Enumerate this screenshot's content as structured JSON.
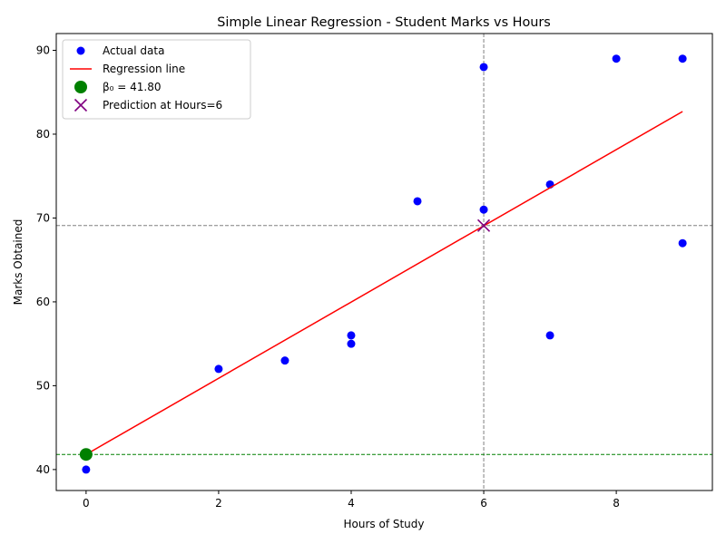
{
  "chart_data": {
    "type": "scatter",
    "title": "Simple Linear Regression - Student Marks vs Hours",
    "xlabel": "Hours of Study",
    "ylabel": "Marks Obtained",
    "xlim": [
      -0.45,
      9.45
    ],
    "ylim": [
      37.5,
      92.0
    ],
    "xticks": [
      0,
      2,
      4,
      6,
      8
    ],
    "yticks": [
      40,
      50,
      60,
      70,
      80,
      90
    ],
    "grid": false,
    "legend_position": "top-left",
    "series": [
      {
        "name": "Actual data",
        "kind": "scatter",
        "color": "#0000ff",
        "marker": "circle",
        "x": [
          0,
          2,
          3,
          4,
          4,
          5,
          6,
          6,
          7,
          7,
          8,
          9,
          9
        ],
        "y": [
          40,
          52,
          53,
          56,
          55,
          72,
          88,
          71,
          74,
          56,
          89,
          89,
          67
        ]
      },
      {
        "name": "Regression line",
        "kind": "line",
        "color": "#ff0000",
        "x": [
          0,
          9
        ],
        "y": [
          41.8,
          82.7
        ]
      },
      {
        "name": "β₀ = 41.80",
        "kind": "point",
        "color": "#008000",
        "marker": "circle-large",
        "x": [
          0
        ],
        "y": [
          41.8
        ]
      },
      {
        "name": "Prediction at Hours=6",
        "kind": "point",
        "color": "#800080",
        "marker": "x",
        "x": [
          6
        ],
        "y": [
          69.1
        ]
      }
    ],
    "reference_lines": [
      {
        "orientation": "vertical",
        "value": 6,
        "color": "#808080",
        "style": "dashed"
      },
      {
        "orientation": "horizontal",
        "value": 69.1,
        "color": "#808080",
        "style": "dashed"
      },
      {
        "orientation": "horizontal",
        "value": 41.8,
        "color": "#008000",
        "style": "dashed"
      }
    ]
  }
}
